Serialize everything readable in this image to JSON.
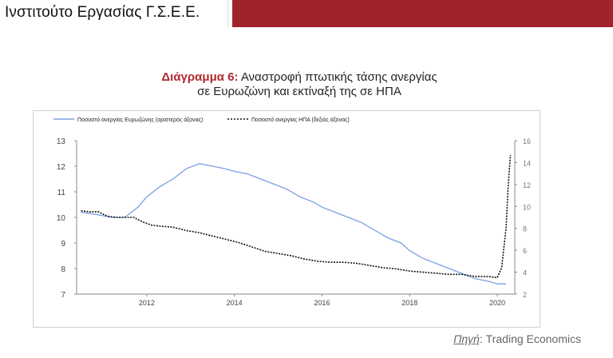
{
  "header": {
    "brand": "Ινστιτούτο Εργασίας Γ.Σ.Ε.Ε.",
    "accent_color": "#a0232a"
  },
  "title": {
    "prefix": "Διάγραμμα 6:",
    "line1": "Αναστροφή πτωτικής τάσης ανεργίας",
    "line2": "σε Ευρωζώνη και εκτίναξή της σε ΗΠΑ"
  },
  "source": {
    "prefix": "Πηγή",
    "text": ": Trading Economics"
  },
  "chart_data": {
    "type": "line",
    "x_ticks": [
      "2012",
      "2014",
      "2016",
      "2018",
      "2020"
    ],
    "xlim": [
      2010.4,
      2020.4
    ],
    "y_left_ticks": [
      "13",
      "12",
      "11",
      "10",
      "9",
      "8",
      "7"
    ],
    "ylim_left": [
      7,
      13
    ],
    "y_right_ticks": [
      "16",
      "14",
      "12",
      "10",
      "8",
      "6",
      "4",
      "2"
    ],
    "ylim_right": [
      2,
      16
    ],
    "legend_position": "top",
    "grid": false,
    "series": [
      {
        "name": "Ποσοστό ανεργίας Ευρωζώνης  (αριστερός άξονας)",
        "axis": "left",
        "color": "#7b9fe6",
        "style": "solid",
        "x": [
          2010.5,
          2010.9,
          2011.2,
          2011.5,
          2011.8,
          2012.0,
          2012.3,
          2012.6,
          2012.9,
          2013.2,
          2013.5,
          2013.8,
          2014.0,
          2014.3,
          2014.6,
          2014.9,
          2015.2,
          2015.5,
          2015.8,
          2016.0,
          2016.3,
          2016.6,
          2016.9,
          2017.2,
          2017.5,
          2017.8,
          2018.0,
          2018.3,
          2018.6,
          2018.9,
          2019.2,
          2019.5,
          2019.8,
          2020.0,
          2020.2
        ],
        "y": [
          10.2,
          10.1,
          10.0,
          10.0,
          10.4,
          10.8,
          11.2,
          11.5,
          11.9,
          12.1,
          12.0,
          11.9,
          11.8,
          11.7,
          11.5,
          11.3,
          11.1,
          10.8,
          10.6,
          10.4,
          10.2,
          10.0,
          9.8,
          9.5,
          9.2,
          9.0,
          8.7,
          8.4,
          8.2,
          8.0,
          7.8,
          7.6,
          7.5,
          7.4,
          7.4
        ]
      },
      {
        "name": "Ποσοστό ανεργίας ΗΠΑ  (δεξιός άξονας)",
        "axis": "right",
        "color": "#111111",
        "style": "dashed",
        "x": [
          2010.5,
          2010.7,
          2010.9,
          2011.1,
          2011.3,
          2011.5,
          2011.7,
          2011.9,
          2012.1,
          2012.3,
          2012.6,
          2012.9,
          2013.2,
          2013.5,
          2013.8,
          2014.1,
          2014.4,
          2014.7,
          2015.0,
          2015.3,
          2015.6,
          2015.9,
          2016.2,
          2016.5,
          2016.8,
          2017.1,
          2017.4,
          2017.7,
          2018.0,
          2018.3,
          2018.6,
          2018.9,
          2019.2,
          2019.5,
          2019.8,
          2020.0,
          2020.1,
          2020.2,
          2020.25,
          2020.3
        ],
        "y": [
          9.6,
          9.5,
          9.5,
          9.1,
          9.0,
          9.0,
          9.0,
          8.6,
          8.3,
          8.2,
          8.1,
          7.8,
          7.6,
          7.3,
          7.0,
          6.7,
          6.3,
          5.9,
          5.7,
          5.5,
          5.2,
          5.0,
          4.9,
          4.9,
          4.8,
          4.6,
          4.4,
          4.3,
          4.1,
          4.0,
          3.9,
          3.8,
          3.8,
          3.6,
          3.6,
          3.5,
          4.4,
          8.0,
          12.0,
          14.7
        ]
      }
    ]
  }
}
